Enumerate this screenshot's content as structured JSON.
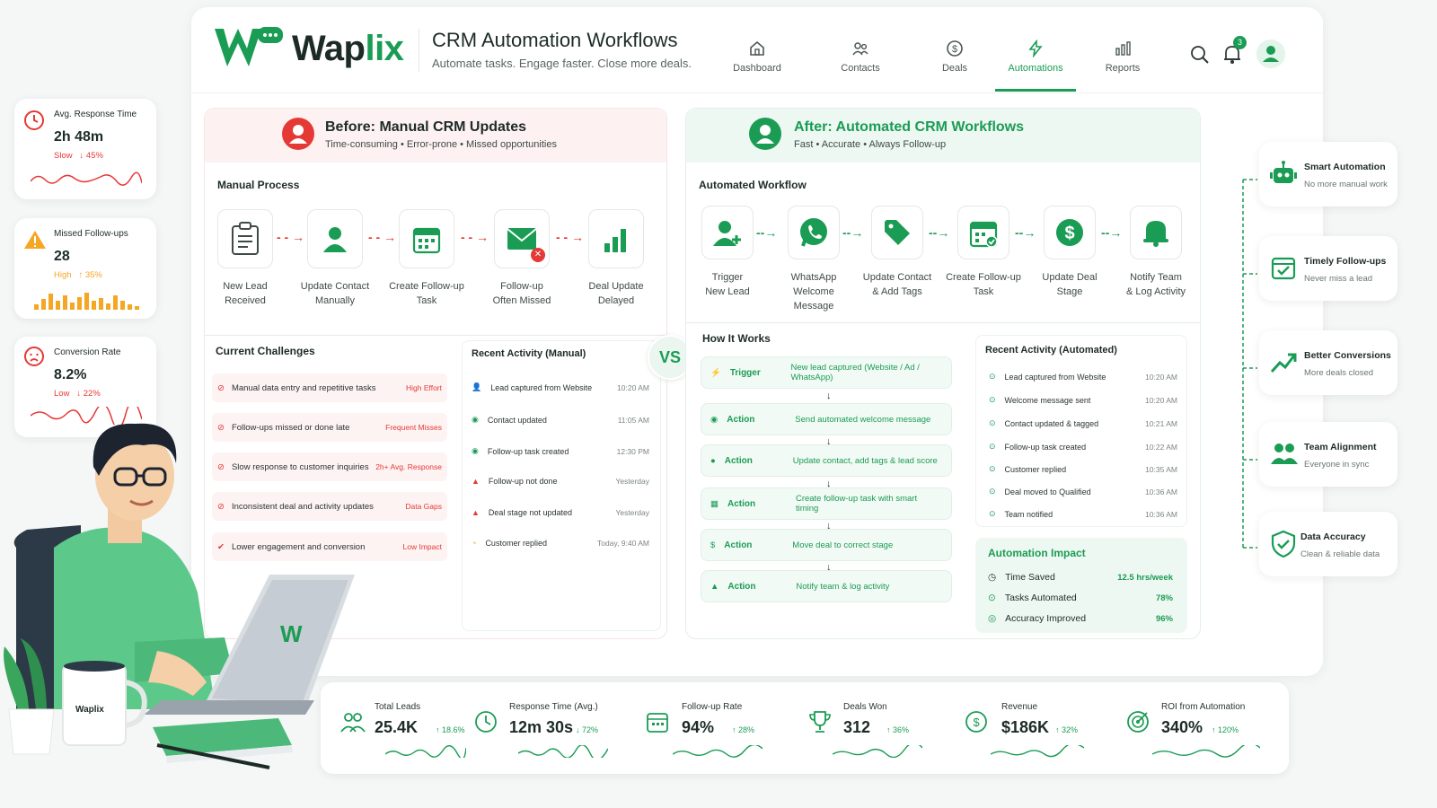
{
  "brand": {
    "name_a": "Wap",
    "name_b": "lix",
    "mug_label": "Waplix",
    "laptop_mark": "W"
  },
  "header": {
    "title": "CRM Automation Workflows",
    "subtitle": "Automate tasks. Engage faster. Close more deals.",
    "nav": [
      {
        "label": "Dashboard",
        "icon": "home-icon"
      },
      {
        "label": "Contacts",
        "icon": "contacts-icon"
      },
      {
        "label": "Deals",
        "icon": "dollar-icon"
      },
      {
        "label": "Automations",
        "icon": "lightning-icon",
        "active": true
      },
      {
        "label": "Reports",
        "icon": "bar-chart-icon"
      }
    ],
    "notifications_count": "3"
  },
  "left_metrics": [
    {
      "label": "Avg. Response Time",
      "value": "2h 48m",
      "status": "Slow",
      "delta": "↓ 45%"
    },
    {
      "label": "Missed Follow-ups",
      "value": "28",
      "status": "High",
      "delta": "↑ 35%"
    },
    {
      "label": "Conversion Rate",
      "value": "8.2%",
      "status": "Low",
      "delta": "↓ 22%"
    }
  ],
  "before": {
    "title": "Before: Manual CRM Updates",
    "subtitle": "Time-consuming • Error-prone • Missed opportunities",
    "process_title": "Manual Process",
    "steps": [
      {
        "line1": "New Lead",
        "line2": "Received"
      },
      {
        "line1": "Update Contact",
        "line2": "Manually"
      },
      {
        "line1": "Create Follow-up",
        "line2": "Task"
      },
      {
        "line1": "Follow-up",
        "line2": "Often Missed"
      },
      {
        "line1": "Deal Update",
        "line2": "Delayed"
      }
    ],
    "challenges_title": "Current Challenges",
    "challenges": [
      {
        "text": "Manual data entry and repetitive tasks",
        "tag": "High Effort"
      },
      {
        "text": "Follow-ups missed or done late",
        "tag": "Frequent Misses"
      },
      {
        "text": "Slow response to customer inquiries",
        "tag": "2h+ Avg. Response"
      },
      {
        "text": "Inconsistent deal and activity updates",
        "tag": "Data Gaps"
      },
      {
        "text": "Lower engagement and conversion",
        "tag": "Low Impact"
      }
    ],
    "activity_title": "Recent Activity (Manual)",
    "activity": [
      {
        "text": "Lead captured from Website",
        "time": "10:20 AM"
      },
      {
        "text": "Contact updated",
        "time": "11:05 AM"
      },
      {
        "text": "Follow-up task created",
        "time": "12:30 PM"
      },
      {
        "text": "Follow-up not done",
        "time": "Yesterday"
      },
      {
        "text": "Deal stage not updated",
        "time": "Yesterday"
      },
      {
        "text": "Customer replied",
        "time": "Today, 9:40 AM"
      }
    ]
  },
  "vs_label": "VS",
  "after": {
    "title": "After: Automated CRM Workflows",
    "subtitle": "Fast • Accurate • Always Follow-up",
    "workflow_title": "Automated Workflow",
    "steps": [
      {
        "line1": "Trigger",
        "line2": "New Lead",
        "line3": ""
      },
      {
        "line1": "WhatsApp",
        "line2": "Welcome",
        "line3": "Message"
      },
      {
        "line1": "Update Contact",
        "line2": "& Add Tags",
        "line3": ""
      },
      {
        "line1": "Create Follow-up",
        "line2": "Task",
        "line3": ""
      },
      {
        "line1": "Update Deal",
        "line2": "Stage",
        "line3": ""
      },
      {
        "line1": "Notify Team",
        "line2": "& Log Activity",
        "line3": ""
      }
    ],
    "how_title": "How It Works",
    "how": [
      {
        "kind": "Trigger",
        "text": "New lead captured (Website / Ad / WhatsApp)"
      },
      {
        "kind": "Action",
        "text": "Send automated welcome message"
      },
      {
        "kind": "Action",
        "text": "Update contact, add tags & lead score"
      },
      {
        "kind": "Action",
        "text": "Create follow-up task with smart timing"
      },
      {
        "kind": "Action",
        "text": "Move deal to correct stage"
      },
      {
        "kind": "Action",
        "text": "Notify team & log activity"
      }
    ],
    "activity_title": "Recent Activity (Automated)",
    "activity": [
      {
        "text": "Lead captured from Website",
        "time": "10:20 AM"
      },
      {
        "text": "Welcome message sent",
        "time": "10:20 AM"
      },
      {
        "text": "Contact updated & tagged",
        "time": "10:21 AM"
      },
      {
        "text": "Follow-up task created",
        "time": "10:22 AM"
      },
      {
        "text": "Customer replied",
        "time": "10:35 AM"
      },
      {
        "text": "Deal moved to Qualified",
        "time": "10:36 AM"
      },
      {
        "text": "Team notified",
        "time": "10:36 AM"
      }
    ],
    "impact_title": "Automation Impact",
    "impact": [
      {
        "label": "Time Saved",
        "value": "12.5 hrs/week"
      },
      {
        "label": "Tasks Automated",
        "value": "78%"
      },
      {
        "label": "Accuracy Improved",
        "value": "96%"
      }
    ]
  },
  "benefits": [
    {
      "title": "Smart Automation",
      "subtitle": "No more manual work"
    },
    {
      "title": "Timely Follow-ups",
      "subtitle": "Never miss a lead"
    },
    {
      "title": "Better Conversions",
      "subtitle": "More deals closed"
    },
    {
      "title": "Team Alignment",
      "subtitle": "Everyone in sync"
    },
    {
      "title": "Data Accuracy",
      "subtitle": "Clean & reliable data"
    }
  ],
  "kpis": [
    {
      "label": "Total Leads",
      "value": "25.4K",
      "delta": "↑ 18.6%"
    },
    {
      "label": "Response Time (Avg.)",
      "value": "12m 30s",
      "delta": "↓ 72%"
    },
    {
      "label": "Follow-up Rate",
      "value": "94%",
      "delta": "↑ 28%"
    },
    {
      "label": "Deals Won",
      "value": "312",
      "delta": "↑ 36%"
    },
    {
      "label": "Revenue",
      "value": "$186K",
      "delta": "↑ 32%"
    },
    {
      "label": "ROI from Automation",
      "value": "340%",
      "delta": "↑ 120%"
    }
  ],
  "colors": {
    "green": "#1a9c54",
    "red": "#e53935",
    "orange": "#f5a623"
  }
}
